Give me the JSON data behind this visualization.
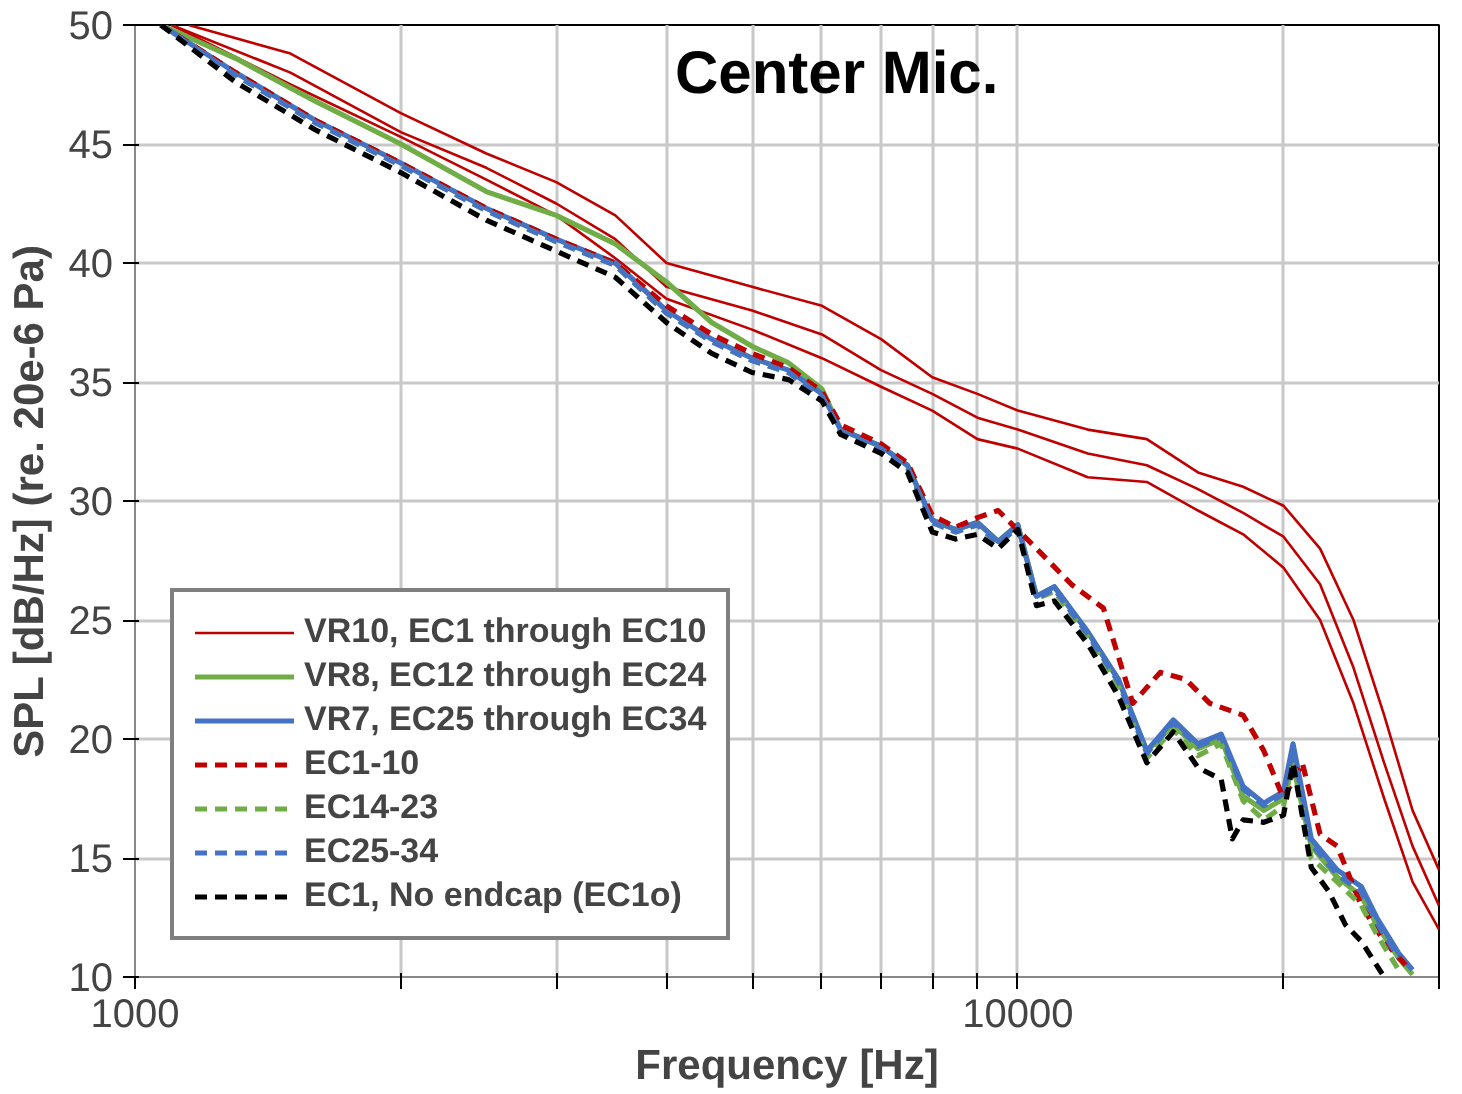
{
  "chart_data": {
    "type": "line",
    "title": "Center Mic.",
    "xlabel": "Frequency [Hz]",
    "ylabel": "SPL [dB/Hz] (re. 20e-6 Pa)",
    "log": "x",
    "grid": true,
    "legend": "bottom left",
    "marker": "none",
    "xlim": [
      1000,
      30000
    ],
    "ylim": [
      10,
      50
    ],
    "xticks": [
      1000,
      {
        "value": 2000,
        "label": null
      },
      {
        "value": 3000,
        "label": null
      },
      {
        "value": 4000,
        "label": null
      },
      {
        "value": 5000,
        "label": null
      },
      {
        "value": 6000,
        "label": null
      },
      {
        "value": 7000,
        "label": null
      },
      {
        "value": 8000,
        "label": null
      },
      {
        "value": 9000,
        "label": null
      },
      10000,
      {
        "value": 20000,
        "label": null
      },
      {
        "value": 30000,
        "label": null
      }
    ],
    "yticks": [
      10,
      15,
      20,
      25,
      30,
      35,
      40,
      45,
      50
    ],
    "series": [
      {
        "name": "VR10, EC1 through EC10",
        "color": "#c00000",
        "line_style": "solid",
        "x": [
          1100,
          1500,
          2000,
          2500,
          3000,
          3500,
          4000,
          5000,
          6000,
          7000,
          8000,
          9000,
          10000,
          12000,
          14000,
          16000,
          18000,
          20000,
          22000,
          24000,
          26000,
          28000,
          30000
        ],
        "values": [
          50,
          48,
          45.5,
          44,
          42.5,
          41,
          39,
          38,
          37,
          35.5,
          34.5,
          33.5,
          33,
          32,
          31.5,
          30.5,
          29.5,
          28.5,
          26.5,
          23,
          19,
          15.5,
          13
        ]
      },
      {
        "color": "#c00000",
        "line_style": "solid",
        "x": [
          1150,
          1500,
          2000,
          2500,
          3000,
          3500,
          4000,
          5000,
          6000,
          7000,
          8000,
          9000,
          10000,
          12000,
          14000,
          16000,
          18000,
          20000,
          22000,
          24000,
          26000,
          28000,
          30000
        ],
        "values": [
          50,
          48.8,
          46.3,
          44.6,
          43.4,
          42,
          40,
          39,
          38.2,
          36.8,
          35.2,
          34.5,
          33.8,
          33,
          32.6,
          31.2,
          30.6,
          29.8,
          28,
          25,
          21,
          17,
          14.5
        ]
      },
      {
        "color": "#c00000",
        "line_style": "solid",
        "x": [
          1100,
          1500,
          2000,
          2500,
          3000,
          3500,
          4000,
          5000,
          6000,
          7000,
          8000,
          9000,
          10000,
          12000,
          14000,
          16000,
          18000,
          20000,
          22000,
          24000,
          26000,
          28000,
          30000
        ],
        "values": [
          50,
          47.5,
          45.3,
          43.5,
          42,
          40.2,
          38.5,
          37.2,
          36,
          34.8,
          33.8,
          32.6,
          32.2,
          31,
          30.8,
          29.6,
          28.6,
          27.2,
          25,
          21.5,
          17.5,
          14,
          12
        ]
      },
      {
        "name": "VR8, EC12 through EC24",
        "color": "#70ad47",
        "line_style": "solid",
        "x": [
          1070,
          1300,
          1600,
          2000,
          2500,
          3000,
          3500,
          4000,
          4500,
          5000,
          5500,
          6000,
          6300,
          7000,
          7500,
          8000,
          8500,
          9000,
          9500,
          10000,
          10500,
          11000,
          12000,
          13000,
          14000,
          15000,
          16000,
          17000,
          18000,
          19000,
          20000,
          20500,
          21500,
          23000,
          24500,
          25500,
          27000,
          28000
        ],
        "values": [
          50,
          48.6,
          46.8,
          45,
          43,
          42,
          40.8,
          39.2,
          37.5,
          36.5,
          35.8,
          34.7,
          33,
          32.3,
          31.5,
          29.2,
          28.8,
          29.1,
          28.3,
          29,
          26,
          26.4,
          24.5,
          22.5,
          19.5,
          20.6,
          19.6,
          20,
          17.6,
          17,
          17.5,
          18.9,
          15.5,
          14.2,
          13.4,
          12.2,
          10.8,
          10.1
        ]
      },
      {
        "name": "VR7, EC25 through EC34",
        "color": "#4472c4",
        "line_style": "solid",
        "x": [
          1070,
          1300,
          1600,
          2000,
          2500,
          3000,
          3500,
          4000,
          4500,
          5000,
          5500,
          6000,
          6300,
          7000,
          7500,
          8000,
          8500,
          9000,
          9500,
          10000,
          10500,
          11000,
          12000,
          13000,
          14000,
          15000,
          16000,
          17000,
          18000,
          19000,
          20000,
          20500,
          21500,
          23000,
          24500,
          25500,
          27000,
          28000
        ],
        "values": [
          50,
          48,
          46,
          44.2,
          42.3,
          41,
          40,
          38,
          36.8,
          36,
          35.5,
          34.5,
          33,
          32.3,
          31.5,
          29.2,
          28.8,
          29.1,
          28.3,
          29,
          26,
          26.4,
          24.5,
          22.5,
          19.5,
          20.8,
          19.8,
          20.2,
          18,
          17.3,
          17.8,
          19.8,
          15.8,
          14.5,
          13.8,
          12.5,
          11,
          10.3
        ]
      },
      {
        "name": "EC1-10",
        "color": "#c00000",
        "line_style": "dashed",
        "x": [
          1070,
          1300,
          1600,
          2000,
          2500,
          3000,
          3500,
          4000,
          4500,
          5000,
          5500,
          6000,
          6300,
          7000,
          7500,
          8000,
          8500,
          9000,
          9500,
          10500,
          11500,
          12500,
          13500,
          14500,
          15500,
          16500,
          18000,
          19000,
          20000,
          21000,
          22000,
          23000,
          24500,
          26000,
          27500
        ],
        "values": [
          50,
          48,
          46,
          44.2,
          42.3,
          41,
          40,
          38.2,
          37,
          36.2,
          35.6,
          34.6,
          33.2,
          32.4,
          31.6,
          29.4,
          28.9,
          29.3,
          29.6,
          28,
          26.5,
          25.5,
          21.5,
          22.8,
          22.5,
          21.5,
          21,
          19.5,
          17.5,
          19,
          16,
          15.5,
          13,
          11.5,
          10.5
        ]
      },
      {
        "name": "EC14-23",
        "color": "#70ad47",
        "line_style": "dashed",
        "x": [
          1070,
          1300,
          1600,
          2000,
          2500,
          3000,
          3500,
          4000,
          4500,
          5000,
          5500,
          6000,
          6300,
          7000,
          7500,
          8000,
          8500,
          9000,
          9500,
          10000,
          10500,
          11000,
          12000,
          13000,
          14000,
          15000,
          16000,
          17000,
          18000,
          19000,
          20000,
          20500,
          21500,
          23000,
          24500,
          25500,
          27000
        ],
        "values": [
          50,
          47.9,
          45.9,
          44.1,
          42.2,
          40.9,
          39.9,
          37.9,
          36.7,
          35.9,
          35.4,
          34.4,
          32.9,
          32.2,
          31.4,
          29.1,
          28.7,
          29,
          28.2,
          28.9,
          25.9,
          26.2,
          24.3,
          22.2,
          19.2,
          20.4,
          19.3,
          19.8,
          17.4,
          16.6,
          17.2,
          19.2,
          15,
          14,
          13,
          11.8,
          10.3
        ]
      },
      {
        "name": "EC25-34",
        "color": "#4472c4",
        "line_style": "dashed",
        "x": [
          1070,
          1300,
          1600,
          2000,
          2500,
          3000,
          3500,
          4000,
          4500,
          5000,
          5500,
          6000,
          6300,
          7000,
          7500,
          8000,
          8500,
          9000,
          9500,
          10000,
          10500,
          11000,
          12000,
          13000,
          14000,
          15000,
          16000,
          17000,
          18000,
          19000,
          20000,
          20500,
          21500,
          23000,
          24500,
          25500,
          27000
        ],
        "values": [
          50,
          47.9,
          45.9,
          44.1,
          42.2,
          40.9,
          39.9,
          37.9,
          36.7,
          35.9,
          35.4,
          34.4,
          32.9,
          32.2,
          31.4,
          29.1,
          28.7,
          29,
          28.2,
          28.9,
          25.9,
          26.3,
          24.4,
          22.4,
          19.4,
          20.7,
          19.7,
          20.1,
          17.9,
          17.2,
          17.7,
          19.6,
          15.6,
          14.3,
          13.6,
          12.3,
          10.8
        ]
      },
      {
        "name": "EC1, No endcap (EC1o)",
        "color": "#000000",
        "line_style": "dashed",
        "x": [
          1070,
          1300,
          1600,
          2000,
          2500,
          3000,
          3500,
          4000,
          4500,
          5000,
          5500,
          6000,
          6300,
          7000,
          7500,
          8000,
          8500,
          9000,
          9500,
          10000,
          10500,
          11000,
          12000,
          13000,
          14000,
          15000,
          16000,
          17000,
          17500,
          18000,
          19000,
          20000,
          20500,
          21500,
          22500,
          23500,
          24500,
          26000
        ],
        "values": [
          50,
          47.6,
          45.6,
          43.8,
          41.8,
          40.5,
          39.4,
          37.5,
          36.2,
          35.4,
          35.1,
          34.2,
          32.8,
          32,
          31.2,
          28.7,
          28.4,
          28.6,
          28,
          28.8,
          25.6,
          25.8,
          24,
          21.8,
          19,
          20.3,
          18.8,
          18.3,
          15.8,
          16.6,
          16.5,
          16.8,
          19,
          14.6,
          13.6,
          12.2,
          11.5,
          10
        ]
      }
    ]
  }
}
